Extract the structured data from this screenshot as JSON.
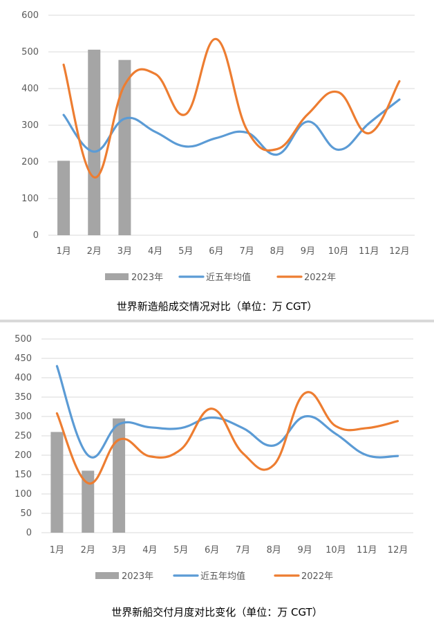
{
  "chart_data": [
    {
      "type": "bar+line",
      "title": "世界新造船成交情况对比（单位：万 CGT）",
      "categories": [
        "1月",
        "2月",
        "3月",
        "4月",
        "5月",
        "6月",
        "7月",
        "8月",
        "9月",
        "10月",
        "11月",
        "12月"
      ],
      "ylim": [
        0,
        600
      ],
      "yticks": [
        "0",
        "100",
        "200",
        "300",
        "400",
        "500",
        "600"
      ],
      "grid": true,
      "legend_position": "bottom",
      "series": [
        {
          "name": "2023年",
          "kind": "bar",
          "color": "#a5a5a5",
          "values": [
            203,
            506,
            478,
            null,
            null,
            null,
            null,
            null,
            null,
            null,
            null,
            null
          ]
        },
        {
          "name": "近五年均值",
          "kind": "line",
          "color": "#5b9bd5",
          "values": [
            328,
            228,
            318,
            282,
            242,
            265,
            280,
            220,
            310,
            233,
            305,
            370
          ]
        },
        {
          "name": "2022年",
          "kind": "line",
          "color": "#ed7d31",
          "values": [
            465,
            158,
            410,
            440,
            330,
            535,
            288,
            235,
            330,
            390,
            278,
            420
          ]
        }
      ]
    },
    {
      "type": "bar+line",
      "title": "世界新船交付月度对比变化（单位：万 CGT）",
      "categories": [
        "1月",
        "2月",
        "3月",
        "4月",
        "5月",
        "6月",
        "7月",
        "8月",
        "9月",
        "10月",
        "11月",
        "12月"
      ],
      "ylim": [
        0,
        500
      ],
      "yticks": [
        "0",
        "50",
        "100",
        "150",
        "200",
        "250",
        "300",
        "350",
        "400",
        "450",
        "500"
      ],
      "grid": true,
      "legend_position": "bottom",
      "series": [
        {
          "name": "2023年",
          "kind": "bar",
          "color": "#a5a5a5",
          "values": [
            260,
            160,
            295,
            null,
            null,
            null,
            null,
            null,
            null,
            null,
            null,
            null
          ]
        },
        {
          "name": "近五年均值",
          "kind": "line",
          "color": "#5b9bd5",
          "values": [
            430,
            200,
            280,
            272,
            270,
            297,
            270,
            225,
            300,
            255,
            200,
            198
          ]
        },
        {
          "name": "2022年",
          "kind": "line",
          "color": "#ed7d31",
          "values": [
            308,
            128,
            240,
            197,
            215,
            320,
            205,
            175,
            360,
            275,
            270,
            288
          ]
        }
      ]
    }
  ]
}
